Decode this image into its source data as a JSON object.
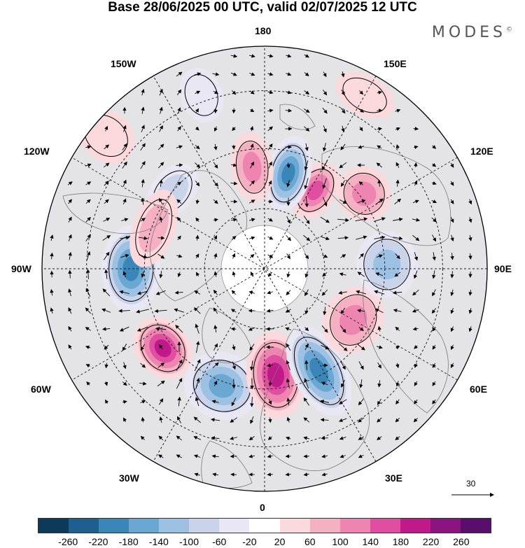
{
  "title": "Base 28/06/2025 00 UTC, valid 02/07/2025 12 UTC",
  "brand": "MODES",
  "brand_mark": "©",
  "longitude_labels": {
    "top": "180",
    "bottom": "0",
    "left": "90W",
    "right": "90E",
    "upper_left": "150W",
    "upper_right": "150E",
    "mid_upper_left": "120W",
    "mid_upper_right": "120E",
    "mid_lower_left": "60W",
    "mid_lower_right": "60E",
    "lower_left": "30W",
    "lower_right": "30E"
  },
  "reference_vector_value": "30",
  "colorbar": {
    "colors": [
      "#0d3a5a",
      "#1f5f8f",
      "#3a86b8",
      "#6aa7d2",
      "#9dc1e2",
      "#c9d4ea",
      "#e9e7f3",
      "#ffffff",
      "#fbd9dc",
      "#f5b1c2",
      "#ee85b1",
      "#df4ea0",
      "#c01a8a",
      "#8c1480",
      "#5a0e6b"
    ],
    "tick_labels": [
      "-260",
      "-220",
      "-180",
      "-140",
      "-100",
      "-60",
      "-20",
      "20",
      "60",
      "100",
      "140",
      "180",
      "220",
      "260"
    ]
  },
  "anomalies": [
    {
      "kind": "neg",
      "value": -200,
      "lon": -90,
      "r": 0.6,
      "rx": 62,
      "ry": 42
    },
    {
      "kind": "pos",
      "value": 230,
      "lon": -52,
      "r": 0.58,
      "rx": 48,
      "ry": 38
    },
    {
      "kind": "neg",
      "value": -170,
      "lon": -20,
      "r": 0.56,
      "rx": 55,
      "ry": 48
    },
    {
      "kind": "pos",
      "value": 200,
      "lon": 6,
      "r": 0.48,
      "rx": 42,
      "ry": 62
    },
    {
      "kind": "neg",
      "value": -200,
      "lon": 28,
      "r": 0.52,
      "rx": 38,
      "ry": 70
    },
    {
      "kind": "pos",
      "value": 150,
      "lon": 60,
      "r": 0.46,
      "rx": 50,
      "ry": 42
    },
    {
      "kind": "neg",
      "value": -140,
      "lon": 92,
      "r": 0.55,
      "rx": 48,
      "ry": 44
    },
    {
      "kind": "pos",
      "value": 150,
      "lon": 127,
      "r": 0.56,
      "rx": 40,
      "ry": 38
    },
    {
      "kind": "pos",
      "value": 180,
      "lon": 147,
      "r": 0.42,
      "rx": 30,
      "ry": 44
    },
    {
      "kind": "neg",
      "value": -210,
      "lon": 166,
      "r": 0.44,
      "rx": 32,
      "ry": 55
    },
    {
      "kind": "pos",
      "value": 120,
      "lon": -173,
      "r": 0.46,
      "rx": 30,
      "ry": 50
    },
    {
      "kind": "neg",
      "value": -110,
      "lon": -130,
      "r": 0.54,
      "rx": 45,
      "ry": 30
    },
    {
      "kind": "pos",
      "value": 110,
      "lon": -110,
      "r": 0.53,
      "rx": 58,
      "ry": 30
    },
    {
      "kind": "pos",
      "value": 60,
      "lon": 150,
      "r": 0.9,
      "rx": 45,
      "ry": 28
    },
    {
      "kind": "neg",
      "value": -60,
      "lon": -160,
      "r": 0.83,
      "rx": 30,
      "ry": 40
    },
    {
      "kind": "pos",
      "value": 60,
      "lon": -130,
      "r": 0.93,
      "rx": 35,
      "ry": 45
    }
  ]
}
